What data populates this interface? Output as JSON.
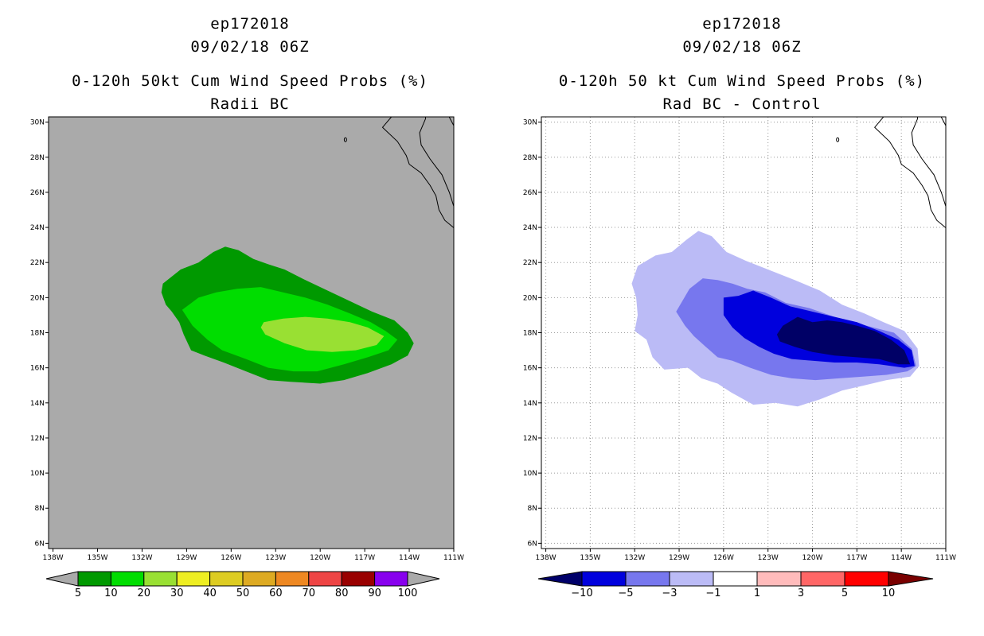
{
  "chart_data": [
    {
      "type": "contour-map",
      "title_lines": [
        "ep172018",
        "09/02/18 06Z",
        "0-120h 50kt Cum Wind Speed Probs (%)",
        "Radii BC"
      ],
      "xlabel": "",
      "ylabel": "",
      "x_ticks": [
        "138W",
        "135W",
        "132W",
        "129W",
        "126W",
        "123W",
        "120W",
        "117W",
        "114W",
        "111W"
      ],
      "x_tick_values": [
        -138,
        -135,
        -132,
        -129,
        -126,
        -123,
        -120,
        -117,
        -114,
        -111
      ],
      "y_ticks": [
        "6N",
        "8N",
        "10N",
        "12N",
        "14N",
        "16N",
        "18N",
        "20N",
        "22N",
        "24N",
        "26N",
        "28N",
        "30N"
      ],
      "y_tick_values": [
        6,
        8,
        10,
        12,
        14,
        16,
        18,
        20,
        22,
        24,
        26,
        28,
        30
      ],
      "xlim": [
        -138.3,
        -111
      ],
      "ylim": [
        5.7,
        30.3
      ],
      "background_color": "#aaaaaa",
      "colorbar": {
        "labels": [
          "5",
          "10",
          "20",
          "30",
          "40",
          "50",
          "60",
          "70",
          "80",
          "90",
          "100"
        ],
        "colors": [
          "#009900",
          "#00dd00",
          "#99e033",
          "#eeee22",
          "#ddcc22",
          "#ddaa22",
          "#ee8822",
          "#ee4444",
          "#990000",
          "#8800ee"
        ],
        "end_color": "#aaaaaa"
      },
      "contours": [
        {
          "level": "5-10",
          "color": "#009900",
          "polygon": [
            [
              -130.6,
              20.8
            ],
            [
              -129.4,
              21.6
            ],
            [
              -128.2,
              22.0
            ],
            [
              -127.2,
              22.6
            ],
            [
              -126.4,
              22.9
            ],
            [
              -125.5,
              22.7
            ],
            [
              -124.5,
              22.2
            ],
            [
              -123.5,
              21.9
            ],
            [
              -122.4,
              21.6
            ],
            [
              -121.0,
              21.0
            ],
            [
              -119.5,
              20.4
            ],
            [
              -118.0,
              19.8
            ],
            [
              -116.5,
              19.2
            ],
            [
              -115.0,
              18.7
            ],
            [
              -114.1,
              18.0
            ],
            [
              -113.7,
              17.4
            ],
            [
              -114.1,
              16.7
            ],
            [
              -115.2,
              16.2
            ],
            [
              -116.8,
              15.7
            ],
            [
              -118.4,
              15.3
            ],
            [
              -120.0,
              15.1
            ],
            [
              -122.0,
              15.2
            ],
            [
              -123.5,
              15.3
            ],
            [
              -125.0,
              15.8
            ],
            [
              -126.5,
              16.3
            ],
            [
              -127.8,
              16.7
            ],
            [
              -128.7,
              17.0
            ],
            [
              -129.2,
              17.9
            ],
            [
              -129.5,
              18.6
            ],
            [
              -130.0,
              19.2
            ],
            [
              -130.4,
              19.6
            ],
            [
              -130.7,
              20.3
            ]
          ]
        },
        {
          "level": "10-20",
          "color": "#00dd00",
          "polygon": [
            [
              -129.3,
              19.3
            ],
            [
              -128.2,
              20.0
            ],
            [
              -127.0,
              20.3
            ],
            [
              -125.6,
              20.5
            ],
            [
              -124.0,
              20.6
            ],
            [
              -122.5,
              20.3
            ],
            [
              -121.0,
              20.0
            ],
            [
              -119.5,
              19.6
            ],
            [
              -118.0,
              19.1
            ],
            [
              -116.6,
              18.6
            ],
            [
              -115.6,
              18.1
            ],
            [
              -114.8,
              17.6
            ],
            [
              -115.4,
              17.0
            ],
            [
              -116.8,
              16.6
            ],
            [
              -118.4,
              16.2
            ],
            [
              -120.2,
              15.8
            ],
            [
              -121.8,
              15.8
            ],
            [
              -123.5,
              16.0
            ],
            [
              -125.0,
              16.5
            ],
            [
              -126.6,
              17.0
            ],
            [
              -127.6,
              17.6
            ],
            [
              -128.6,
              18.4
            ]
          ]
        },
        {
          "level": "20-30",
          "color": "#99e033",
          "polygon": [
            [
              -123.8,
              18.6
            ],
            [
              -122.5,
              18.8
            ],
            [
              -121.0,
              18.9
            ],
            [
              -119.5,
              18.8
            ],
            [
              -118.0,
              18.6
            ],
            [
              -116.8,
              18.3
            ],
            [
              -115.7,
              17.8
            ],
            [
              -116.2,
              17.3
            ],
            [
              -117.6,
              17.0
            ],
            [
              -119.2,
              16.9
            ],
            [
              -120.9,
              17.0
            ],
            [
              -122.4,
              17.4
            ],
            [
              -123.7,
              17.9
            ],
            [
              -124.0,
              18.3
            ]
          ]
        }
      ],
      "coastline": true
    },
    {
      "type": "contour-map",
      "title_lines": [
        "ep172018",
        "09/02/18 06Z",
        "0-120h 50 kt Cum Wind Speed Probs (%)",
        "Rad BC - Control"
      ],
      "xlabel": "",
      "ylabel": "",
      "x_ticks": [
        "138W",
        "135W",
        "132W",
        "129W",
        "126W",
        "123W",
        "120W",
        "117W",
        "114W",
        "111W"
      ],
      "x_tick_values": [
        -138,
        -135,
        -132,
        -129,
        -126,
        -123,
        -120,
        -117,
        -114,
        -111
      ],
      "y_ticks": [
        "6N",
        "8N",
        "10N",
        "12N",
        "14N",
        "16N",
        "18N",
        "20N",
        "22N",
        "24N",
        "26N",
        "28N",
        "30N"
      ],
      "y_tick_values": [
        6,
        8,
        10,
        12,
        14,
        16,
        18,
        20,
        22,
        24,
        26,
        28,
        30
      ],
      "xlim": [
        -138.3,
        -111
      ],
      "ylim": [
        5.7,
        30.3
      ],
      "background_color": "#ffffff",
      "grid": "dotted",
      "colorbar": {
        "labels": [
          "-10",
          "-5",
          "-3",
          "-1",
          "1",
          "3",
          "5",
          "10"
        ],
        "colors": [
          "#0000dd",
          "#7777ee",
          "#bbbbf6",
          "#ffffff",
          "#ffbbbb",
          "#ff6666",
          "#ff0000"
        ],
        "end_colors": [
          "#00006a",
          "#7a0000"
        ]
      },
      "contours": [
        {
          "level": "-1 to -3",
          "color": "#bbbbf6",
          "polygon": [
            [
              -131.8,
              21.8
            ],
            [
              -130.6,
              22.4
            ],
            [
              -129.5,
              22.6
            ],
            [
              -128.5,
              23.3
            ],
            [
              -127.7,
              23.8
            ],
            [
              -126.8,
              23.5
            ],
            [
              -125.8,
              22.6
            ],
            [
              -124.5,
              22.1
            ],
            [
              -123.0,
              21.6
            ],
            [
              -121.2,
              21.0
            ],
            [
              -119.5,
              20.4
            ],
            [
              -118.0,
              19.6
            ],
            [
              -116.5,
              19.1
            ],
            [
              -115.2,
              18.6
            ],
            [
              -113.8,
              18.1
            ],
            [
              -112.9,
              17.1
            ],
            [
              -112.8,
              16.1
            ],
            [
              -113.4,
              15.5
            ],
            [
              -115.0,
              15.3
            ],
            [
              -116.5,
              15.0
            ],
            [
              -118.0,
              14.7
            ],
            [
              -119.5,
              14.2
            ],
            [
              -121.0,
              13.8
            ],
            [
              -122.5,
              14.0
            ],
            [
              -124.0,
              13.9
            ],
            [
              -125.5,
              14.6
            ],
            [
              -126.4,
              15.1
            ],
            [
              -127.5,
              15.4
            ],
            [
              -128.4,
              16.0
            ],
            [
              -130.0,
              15.9
            ],
            [
              -130.8,
              16.6
            ],
            [
              -131.2,
              17.6
            ],
            [
              -132.0,
              18.1
            ],
            [
              -131.8,
              19.0
            ],
            [
              -131.9,
              20.0
            ],
            [
              -132.2,
              20.8
            ]
          ]
        },
        {
          "level": "-3 to -5",
          "color": "#7777ee",
          "polygon": [
            [
              -129.2,
              19.2
            ],
            [
              -128.3,
              20.5
            ],
            [
              -127.4,
              21.1
            ],
            [
              -126.4,
              21.0
            ],
            [
              -125.4,
              20.8
            ],
            [
              -124.4,
              20.5
            ],
            [
              -123.2,
              20.3
            ],
            [
              -121.8,
              19.7
            ],
            [
              -120.2,
              19.4
            ],
            [
              -118.5,
              18.9
            ],
            [
              -117.2,
              18.6
            ],
            [
              -115.9,
              18.3
            ],
            [
              -114.5,
              18.0
            ],
            [
              -113.3,
              17.1
            ],
            [
              -113.0,
              16.1
            ],
            [
              -113.6,
              15.8
            ],
            [
              -115.0,
              15.6
            ],
            [
              -116.6,
              15.5
            ],
            [
              -118.2,
              15.4
            ],
            [
              -119.8,
              15.3
            ],
            [
              -121.4,
              15.4
            ],
            [
              -122.8,
              15.6
            ],
            [
              -124.2,
              16.0
            ],
            [
              -125.4,
              16.4
            ],
            [
              -126.4,
              16.6
            ],
            [
              -127.2,
              17.2
            ],
            [
              -128.0,
              17.8
            ],
            [
              -128.6,
              18.4
            ]
          ]
        },
        {
          "level": "-5 to -10",
          "color": "#0000dd",
          "polygon": [
            [
              -126.0,
              20.0
            ],
            [
              -125.0,
              20.1
            ],
            [
              -124.0,
              20.4
            ],
            [
              -122.8,
              20.0
            ],
            [
              -121.5,
              19.5
            ],
            [
              -120.0,
              19.2
            ],
            [
              -118.5,
              18.9
            ],
            [
              -117.0,
              18.6
            ],
            [
              -115.5,
              18.1
            ],
            [
              -114.2,
              17.6
            ],
            [
              -113.3,
              17.0
            ],
            [
              -113.1,
              16.1
            ],
            [
              -113.8,
              16.0
            ],
            [
              -115.5,
              16.2
            ],
            [
              -117.0,
              16.3
            ],
            [
              -118.5,
              16.3
            ],
            [
              -120.0,
              16.4
            ],
            [
              -121.4,
              16.5
            ],
            [
              -122.6,
              16.8
            ],
            [
              -123.6,
              17.2
            ],
            [
              -124.6,
              17.7
            ],
            [
              -125.4,
              18.3
            ],
            [
              -126.0,
              19.0
            ]
          ]
        },
        {
          "level": "< -10",
          "color": "#000066",
          "polygon": [
            [
              -122.0,
              18.4
            ],
            [
              -121.0,
              18.9
            ],
            [
              -120.0,
              18.6
            ],
            [
              -119.0,
              18.7
            ],
            [
              -118.0,
              18.6
            ],
            [
              -117.0,
              18.4
            ],
            [
              -115.8,
              18.1
            ],
            [
              -114.7,
              17.6
            ],
            [
              -113.8,
              17.0
            ],
            [
              -113.4,
              16.2
            ],
            [
              -114.2,
              16.2
            ],
            [
              -115.5,
              16.5
            ],
            [
              -117.0,
              16.6
            ],
            [
              -118.5,
              16.7
            ],
            [
              -120.0,
              16.9
            ],
            [
              -121.2,
              17.2
            ],
            [
              -122.2,
              17.5
            ],
            [
              -122.4,
              17.9
            ]
          ]
        }
      ],
      "coastline": true
    }
  ]
}
